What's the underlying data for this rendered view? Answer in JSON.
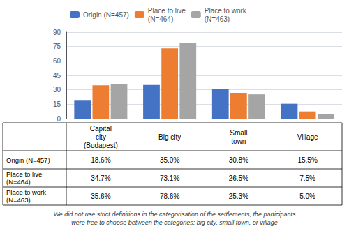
{
  "chart_data": {
    "type": "bar",
    "categories": [
      "Capital\ncity\n(Budapest)",
      "Big city",
      "Small\ntown",
      "Village"
    ],
    "series": [
      {
        "name": "Origin (N=457)",
        "color": "#4472C4",
        "values": [
          18.6,
          35.0,
          30.8,
          15.5
        ],
        "value_labels": [
          "18.6%",
          "35.0%",
          "30.8%",
          "15.5%"
        ]
      },
      {
        "name": "Place to live\n(N=464)",
        "color": "#ED7D31",
        "values": [
          34.7,
          73.1,
          26.5,
          7.5
        ],
        "value_labels": [
          "34.7%",
          "73.1%",
          "26.5%",
          "7.5%"
        ]
      },
      {
        "name": "Place to work\n(N=463)",
        "color": "#A5A5A5",
        "values": [
          35.6,
          78.6,
          25.3,
          5.0
        ],
        "value_labels": [
          "35.6%",
          "78.6%",
          "25.3%",
          "5.0%"
        ]
      }
    ],
    "ylim": [
      0,
      90
    ],
    "yticks": [
      0,
      15,
      30,
      45,
      60,
      75,
      90
    ],
    "grid": true,
    "legend": "upper left",
    "footnote": "We did not use strict definitions in the categorisation of the settlements, the participants\nwere free to choose between the categories: big city, small town, or village"
  }
}
